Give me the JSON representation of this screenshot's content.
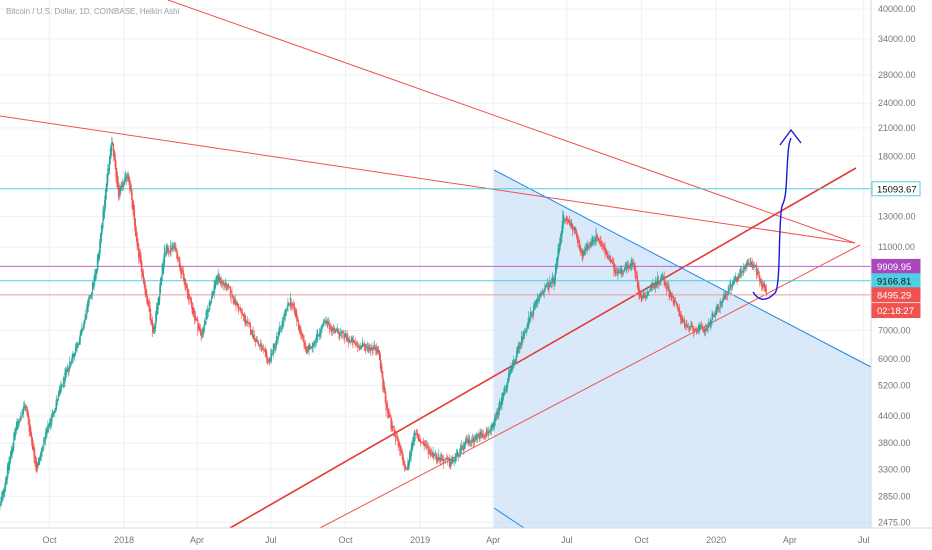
{
  "chart_title": "Bitcoin / U.S. Dollar, 1D, COINBASE, Heikin Ashi",
  "colors": {
    "up": "#26a69a",
    "down": "#ef5350",
    "grid": "#eef0f3",
    "cyan_line": "#4dd0e1",
    "purple_line": "#ba68c8",
    "red_line": "#e53935",
    "blue_line": "#1e88e5",
    "draw_line": "#1a1ad6",
    "triangle_fill": "#cfe3f7"
  },
  "chart_data": {
    "type": "candlestick",
    "title": "Bitcoin / U.S. Dollar, 1D, COINBASE, Heikin Ashi",
    "y_scale": "log",
    "ylim": [
      2400,
      42000
    ],
    "y_ticks": [
      "40000.00",
      "34000.00",
      "28000.00",
      "24000.00",
      "21000.00",
      "18000.00",
      "13000.00",
      "11000.00",
      "7000.00",
      "6000.00",
      "5200.00",
      "4400.00",
      "3800.00",
      "3300.00",
      "2850.00",
      "2475.00"
    ],
    "x_ticks": [
      "Oct",
      "2018",
      "Apr",
      "Jul",
      "Oct",
      "2019",
      "Apr",
      "Jul",
      "Oct",
      "2020",
      "Apr",
      "Jul"
    ],
    "x_range": [
      "2017-08-01",
      "2020-07-10"
    ],
    "price_path": [
      [
        "2017-08-01",
        2700
      ],
      [
        "2017-08-20",
        4100
      ],
      [
        "2017-09-01",
        4700
      ],
      [
        "2017-09-15",
        3300
      ],
      [
        "2017-09-25",
        3900
      ],
      [
        "2017-10-10",
        4800
      ],
      [
        "2017-10-25",
        5800
      ],
      [
        "2017-11-10",
        7000
      ],
      [
        "2017-11-28",
        9800
      ],
      [
        "2017-12-10",
        15500
      ],
      [
        "2017-12-17",
        19700
      ],
      [
        "2017-12-25",
        14500
      ],
      [
        "2018-01-06",
        16500
      ],
      [
        "2018-01-17",
        11000
      ],
      [
        "2018-02-06",
        6900
      ],
      [
        "2018-02-20",
        10800
      ],
      [
        "2018-03-05",
        11000
      ],
      [
        "2018-03-20",
        8500
      ],
      [
        "2018-04-06",
        6800
      ],
      [
        "2018-04-25",
        9400
      ],
      [
        "2018-05-10",
        8700
      ],
      [
        "2018-05-30",
        7400
      ],
      [
        "2018-06-28",
        5900
      ],
      [
        "2018-07-25",
        8300
      ],
      [
        "2018-08-14",
        6200
      ],
      [
        "2018-09-05",
        7300
      ],
      [
        "2018-10-15",
        6450
      ],
      [
        "2018-11-10",
        6350
      ],
      [
        "2018-11-20",
        4600
      ],
      [
        "2018-12-15",
        3250
      ],
      [
        "2018-12-24",
        4000
      ],
      [
        "2019-01-15",
        3600
      ],
      [
        "2019-02-07",
        3400
      ],
      [
        "2019-03-01",
        3850
      ],
      [
        "2019-03-31",
        4100
      ],
      [
        "2019-04-15",
        5100
      ],
      [
        "2019-05-12",
        7200
      ],
      [
        "2019-05-30",
        8600
      ],
      [
        "2019-06-15",
        9200
      ],
      [
        "2019-06-26",
        12900
      ],
      [
        "2019-07-10",
        12200
      ],
      [
        "2019-07-20",
        10500
      ],
      [
        "2019-08-06",
        11800
      ],
      [
        "2019-08-30",
        9600
      ],
      [
        "2019-09-20",
        10100
      ],
      [
        "2019-09-30",
        8300
      ],
      [
        "2019-10-26",
        9400
      ],
      [
        "2019-11-25",
        7100
      ],
      [
        "2019-12-18",
        7000
      ],
      [
        "2020-01-14",
        8600
      ],
      [
        "2020-02-10",
        10200
      ],
      [
        "2020-02-18",
        9900
      ],
      [
        "2020-02-25",
        9000
      ],
      [
        "2020-03-03",
        8800
      ]
    ],
    "horizontal_levels": [
      {
        "value": 15093.67,
        "label": "15093.67",
        "color": "#4dd0e1"
      },
      {
        "value": 9909.95,
        "label": "9909.95",
        "color": "#ba68c8"
      },
      {
        "value": 9166.81,
        "label": "9166.81",
        "color": "#4dd0e1"
      },
      {
        "value": 8495.29,
        "label": "8495.29",
        "color": "#ef9a9a"
      }
    ],
    "price_badges": [
      {
        "label": "15093.67",
        "bg": "#ffffff",
        "fg": "#111111",
        "border": "#4dd0e1",
        "value": 15093.67
      },
      {
        "label": "9909.95",
        "bg": "#ab47bc",
        "fg": "#ffffff",
        "border": "#ab47bc",
        "value": 9909.95
      },
      {
        "label": "9166.81",
        "bg": "#4dd0e1",
        "fg": "#111111",
        "border": "#4dd0e1",
        "value": 9166.81
      },
      {
        "label": "8495.29",
        "bg": "#ef5350",
        "fg": "#ffffff",
        "border": "#ef5350",
        "value": 8495.29
      },
      {
        "label": "02:18:27",
        "bg": "#ef5350",
        "fg": "#ffffff",
        "border": "#ef5350",
        "value": 7800
      }
    ]
  }
}
